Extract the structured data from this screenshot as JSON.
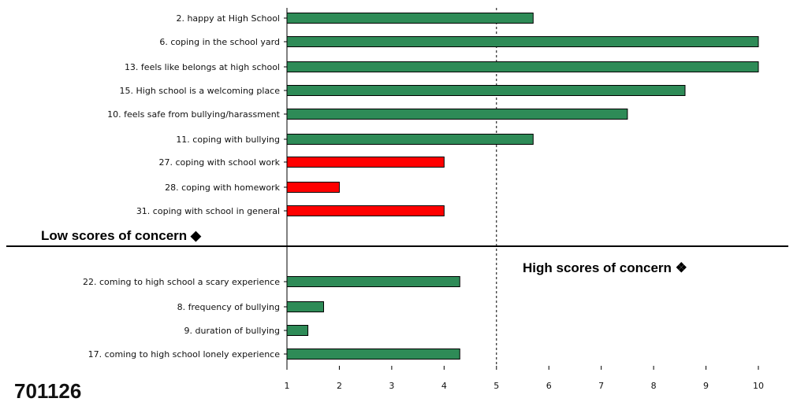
{
  "chart_data": {
    "type": "bar",
    "orientation": "horizontal",
    "id_label": "701126",
    "reference_line": 5,
    "xlim": [
      1,
      10
    ],
    "ticks": [
      "1",
      "2",
      "3",
      "4",
      "5",
      "6",
      "7",
      "8",
      "9",
      "10"
    ],
    "low_label": "Low scores of concern ◆",
    "high_label": "High scores of concern ❖",
    "colors": {
      "normal": "#2e8b57",
      "concern": "#ff0000",
      "outline": "#000000"
    },
    "groups": [
      {
        "name": "low",
        "categories": [
          "2. happy at High School",
          "6. coping in the school yard",
          "13. feels like belongs at high school",
          "15. High school is a welcoming place",
          "10. feels safe from bullying/harassment",
          "11. coping with bullying",
          "27. coping with school work",
          "28. coping with homework",
          "31. coping with school in general"
        ],
        "values": [
          5.7,
          10,
          10,
          8.6,
          7.5,
          5.7,
          4,
          2,
          4
        ],
        "colors": [
          "normal",
          "normal",
          "normal",
          "normal",
          "normal",
          "normal",
          "concern",
          "concern",
          "concern"
        ]
      },
      {
        "name": "high",
        "categories": [
          "22. coming to high school a scary experience",
          "8. frequency of bullying",
          "9.  duration of bullying",
          "17. coming to high school lonely experience"
        ],
        "values": [
          4.3,
          1.7,
          1.4,
          4.3
        ],
        "colors": [
          "normal",
          "normal",
          "normal",
          "normal"
        ]
      }
    ]
  }
}
